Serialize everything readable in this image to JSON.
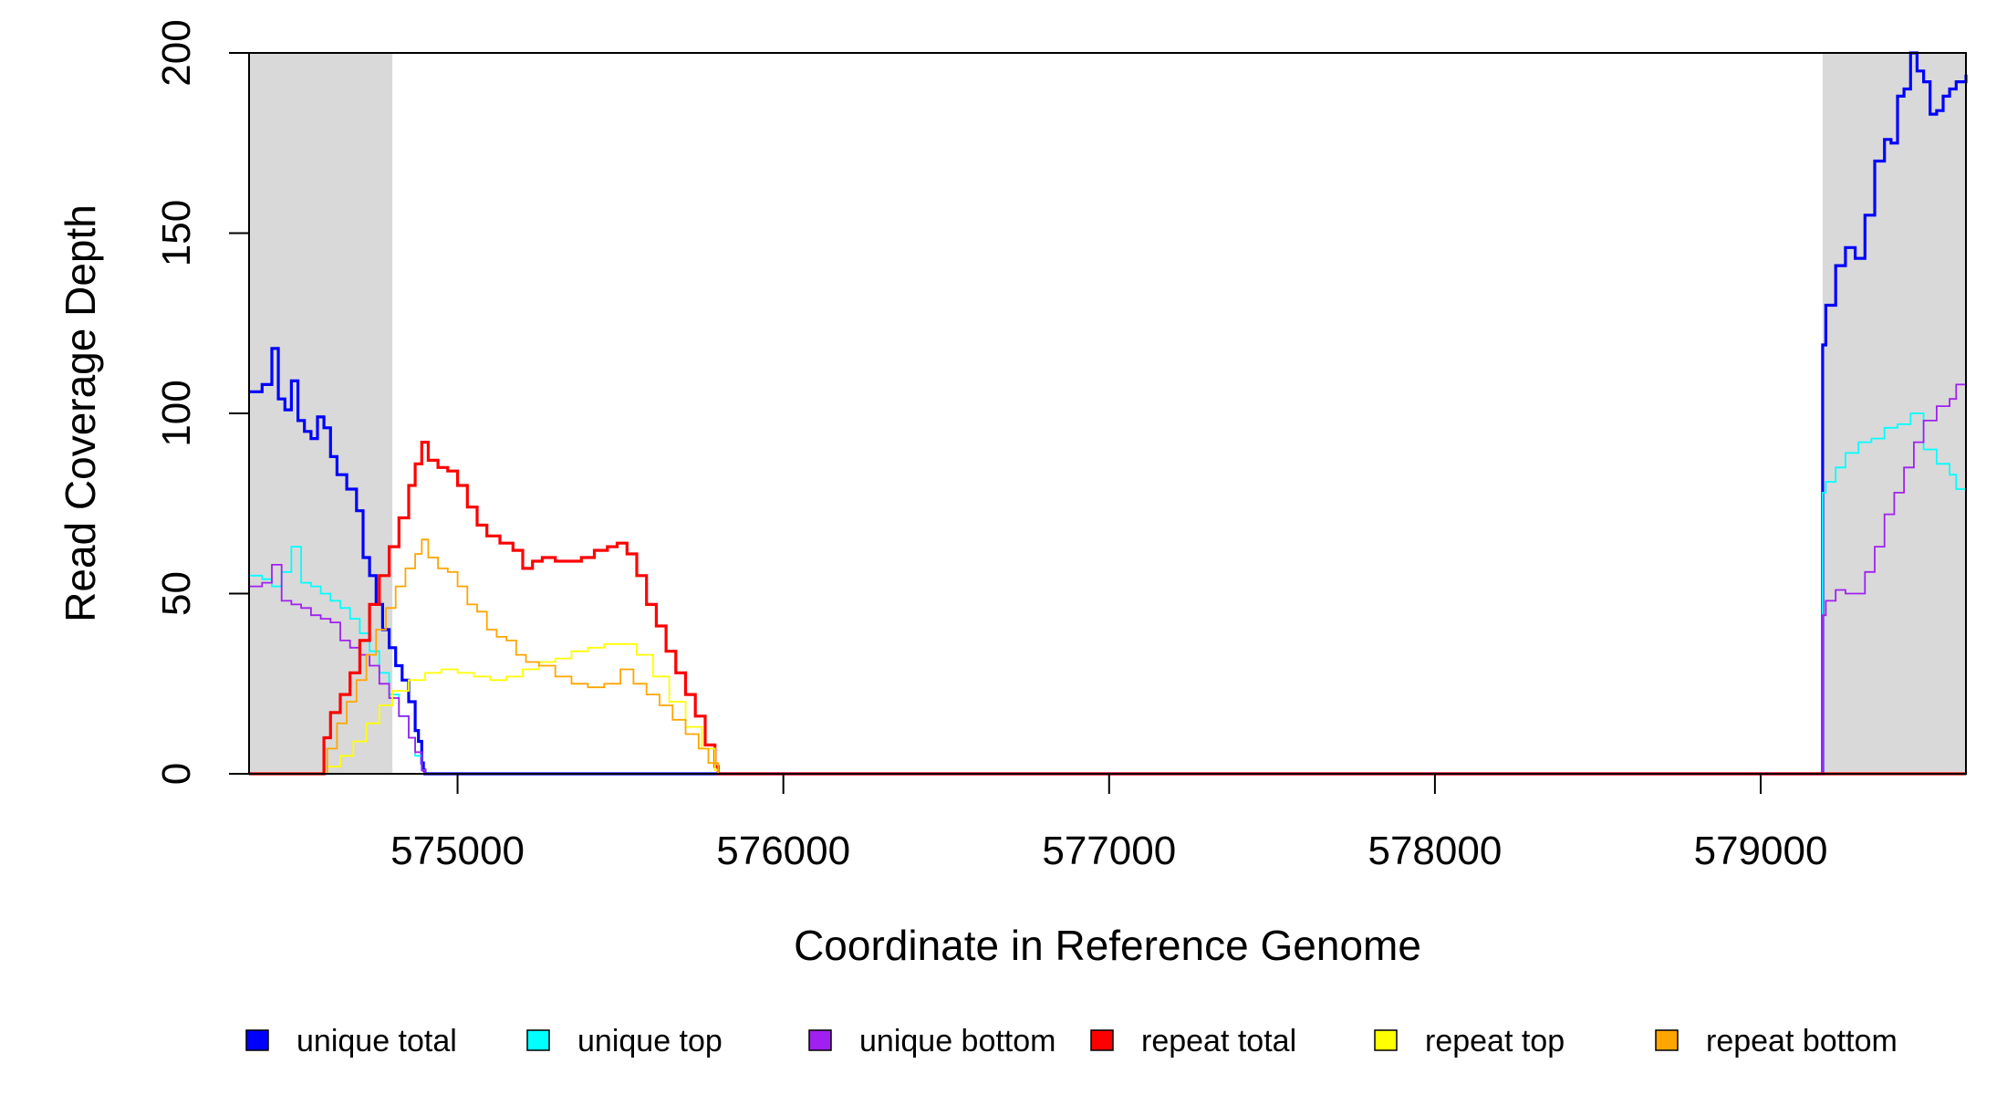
{
  "chart_data": {
    "type": "line",
    "xlabel": "Coordinate in Reference Genome",
    "ylabel": "Read Coverage Depth",
    "xlim": [
      574360,
      579630
    ],
    "ylim": [
      0,
      200
    ],
    "x_ticks": [
      575000,
      576000,
      577000,
      578000,
      579000
    ],
    "y_ticks": [
      0,
      50,
      100,
      150,
      200
    ],
    "shaded_regions": [
      {
        "start": 574360,
        "end": 574800,
        "color": "#d9d9d9"
      },
      {
        "start": 579190,
        "end": 579630,
        "color": "#d9d9d9"
      }
    ],
    "legend_position": "bottom",
    "series": [
      {
        "name": "unique total",
        "color": "#0000ff",
        "x": [
          574360,
          574400,
          574430,
          574450,
          574470,
          574490,
          574510,
          574530,
          574550,
          574570,
          574590,
          574610,
          574630,
          574660,
          574690,
          574710,
          574730,
          574750,
          574770,
          574790,
          574810,
          574830,
          574850,
          574870,
          574880,
          574890,
          574895,
          574900,
          579180,
          579190,
          579200,
          579230,
          579260,
          579290,
          579320,
          579350,
          579380,
          579400,
          579420,
          579440,
          579460,
          579480,
          579500,
          579520,
          579540,
          579560,
          579580,
          579600,
          579630
        ],
        "y": [
          106,
          108,
          118,
          104,
          101,
          109,
          98,
          95,
          93,
          99,
          96,
          88,
          83,
          79,
          73,
          60,
          55,
          47,
          40,
          35,
          30,
          26,
          20,
          12,
          9,
          3,
          1,
          0,
          0,
          119,
          130,
          141,
          146,
          143,
          155,
          170,
          176,
          175,
          188,
          190,
          200,
          195,
          192,
          183,
          184,
          188,
          190,
          192,
          194
        ]
      },
      {
        "name": "unique top",
        "color": "#00ffff",
        "x": [
          574360,
          574400,
          574430,
          574460,
          574490,
          574520,
          574550,
          574580,
          574610,
          574640,
          574670,
          574700,
          574730,
          574760,
          574790,
          574820,
          574850,
          574870,
          574890,
          574900,
          579180,
          579190,
          579200,
          579230,
          579260,
          579300,
          579340,
          579380,
          579420,
          579460,
          579500,
          579540,
          579580,
          579600,
          579630
        ],
        "y": [
          55,
          54,
          52,
          56,
          63,
          53,
          52,
          50,
          48,
          46,
          43,
          39,
          34,
          28,
          22,
          16,
          10,
          5,
          1,
          0,
          0,
          78,
          81,
          85,
          89,
          92,
          93,
          96,
          97,
          100,
          90,
          86,
          83,
          79,
          80
        ]
      },
      {
        "name": "unique bottom",
        "color": "#a020f0",
        "x": [
          574360,
          574400,
          574430,
          574460,
          574490,
          574520,
          574550,
          574580,
          574610,
          574640,
          574670,
          574700,
          574730,
          574760,
          574790,
          574820,
          574850,
          574870,
          574890,
          574900,
          579180,
          579190,
          579200,
          579230,
          579260,
          579290,
          579320,
          579350,
          579380,
          579410,
          579440,
          579470,
          579500,
          579540,
          579580,
          579600,
          579630
        ],
        "y": [
          52,
          53,
          58,
          48,
          47,
          46,
          44,
          43,
          42,
          37,
          35,
          33,
          30,
          25,
          21,
          16,
          10,
          6,
          1,
          0,
          0,
          44,
          48,
          51,
          50,
          50,
          56,
          63,
          72,
          78,
          85,
          92,
          98,
          102,
          104,
          108,
          109
        ]
      },
      {
        "name": "repeat total",
        "color": "#ff0000",
        "x": [
          574360,
          574580,
          574590,
          574610,
          574640,
          574670,
          574700,
          574730,
          574760,
          574790,
          574820,
          574850,
          574870,
          574890,
          574910,
          574940,
          574970,
          575000,
          575030,
          575060,
          575090,
          575130,
          575170,
          575200,
          575230,
          575260,
          575300,
          575340,
          575380,
          575420,
          575460,
          575490,
          575520,
          575550,
          575580,
          575610,
          575640,
          575670,
          575700,
          575730,
          575760,
          575790,
          575800,
          575810,
          579630
        ],
        "y": [
          0,
          0,
          10,
          17,
          22,
          28,
          37,
          47,
          55,
          63,
          71,
          80,
          86,
          92,
          87,
          85,
          84,
          80,
          74,
          69,
          66,
          64,
          62,
          57,
          59,
          60,
          59,
          59,
          60,
          62,
          63,
          64,
          61,
          55,
          47,
          41,
          34,
          28,
          22,
          16,
          8,
          2,
          0,
          0,
          0
        ]
      },
      {
        "name": "repeat top",
        "color": "#ffff00",
        "x": [
          574360,
          574580,
          574600,
          574640,
          574680,
          574720,
          574760,
          574800,
          574850,
          574900,
          574950,
          575000,
          575050,
          575100,
          575150,
          575200,
          575250,
          575300,
          575350,
          575400,
          575450,
          575500,
          575550,
          575600,
          575650,
          575700,
          575750,
          575790,
          575800,
          579630
        ],
        "y": [
          0,
          0,
          2,
          5,
          9,
          14,
          19,
          23,
          26,
          28,
          29,
          28,
          27,
          26,
          27,
          29,
          31,
          32,
          34,
          35,
          36,
          36,
          33,
          27,
          20,
          13,
          7,
          1,
          0,
          0
        ]
      },
      {
        "name": "repeat bottom",
        "color": "#ffa500",
        "x": [
          574360,
          574580,
          574600,
          574630,
          574660,
          574690,
          574720,
          574750,
          574780,
          574810,
          574840,
          574870,
          574890,
          574910,
          574940,
          574970,
          575000,
          575030,
          575060,
          575090,
          575120,
          575150,
          575180,
          575210,
          575250,
          575300,
          575350,
          575400,
          575450,
          575500,
          575540,
          575580,
          575620,
          575660,
          575700,
          575740,
          575770,
          575800,
          579630
        ],
        "y": [
          0,
          0,
          7,
          14,
          20,
          26,
          33,
          40,
          46,
          52,
          57,
          61,
          65,
          60,
          57,
          56,
          52,
          47,
          45,
          40,
          38,
          37,
          33,
          31,
          30,
          27,
          25,
          24,
          25,
          29,
          25,
          22,
          19,
          15,
          11,
          7,
          3,
          0,
          0
        ]
      }
    ]
  }
}
